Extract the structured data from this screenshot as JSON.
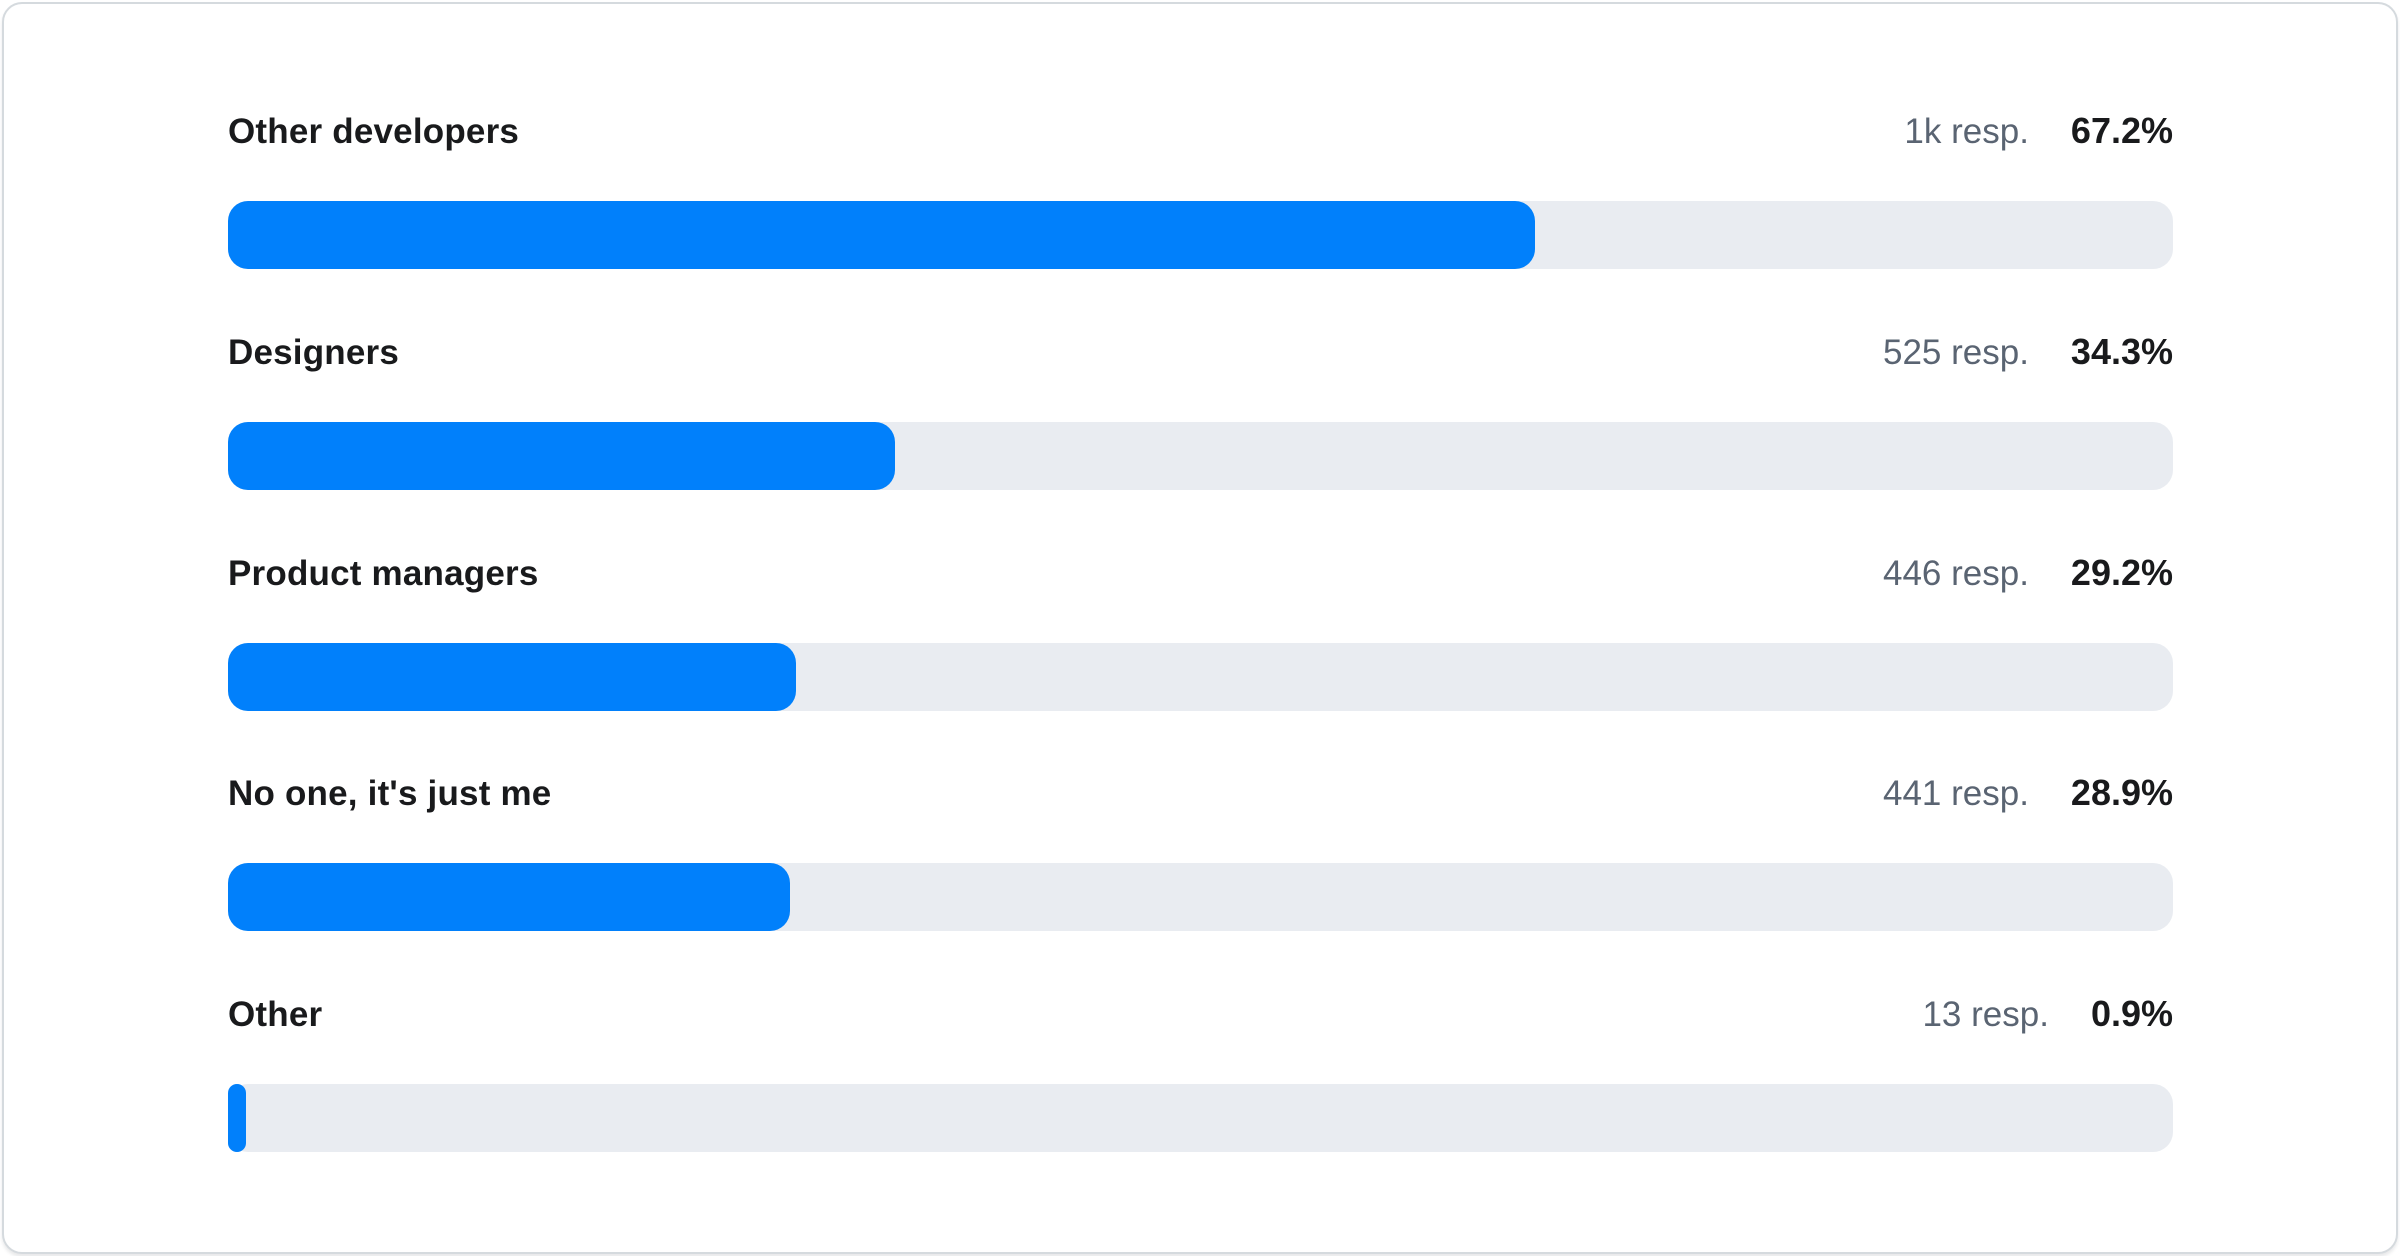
{
  "colors": {
    "bar_fill": "#0180fb",
    "bar_track": "#e9ecf1",
    "label_color": "#191a1c",
    "muted_color": "#5a6472",
    "card_border": "#d5dade",
    "card_bg": "#ffffff"
  },
  "chart_data": {
    "type": "bar",
    "orientation": "horizontal",
    "title": "",
    "xlabel": "",
    "ylabel": "",
    "value_axis": {
      "min": 0,
      "max": 100,
      "unit": "%"
    },
    "grid": false,
    "legend": false,
    "categories": [
      "Other developers",
      "Designers",
      "Product managers",
      "No one, it's just me",
      "Other"
    ],
    "values": [
      67.2,
      34.3,
      29.2,
      28.9,
      0.9
    ],
    "rows": [
      {
        "label": "Other developers",
        "responses": "1k resp.",
        "percent": "67.2%",
        "value": 67.2
      },
      {
        "label": "Designers",
        "responses": "525 resp.",
        "percent": "34.3%",
        "value": 34.3
      },
      {
        "label": "Product managers",
        "responses": "446 resp.",
        "percent": "29.2%",
        "value": 29.2
      },
      {
        "label": "No one, it's just me",
        "responses": "441 resp.",
        "percent": "28.9%",
        "value": 28.9
      },
      {
        "label": "Other",
        "responses": "13 resp.",
        "percent": "0.9%",
        "value": 0.9
      }
    ]
  }
}
